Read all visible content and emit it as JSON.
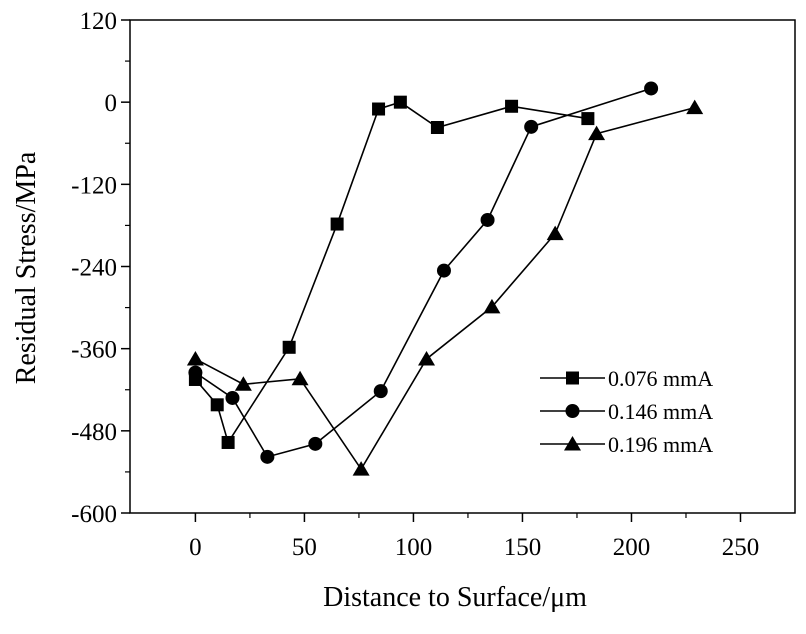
{
  "chart_data": {
    "type": "line",
    "xlabel": "Distance to Surface/μm",
    "ylabel": "Residual Stress/MPa",
    "xlim": [
      -30,
      275
    ],
    "ylim": [
      -600,
      120
    ],
    "xticks": [
      0,
      50,
      100,
      150,
      200,
      250
    ],
    "yticks": [
      -600,
      -480,
      -360,
      -240,
      -120,
      0,
      120
    ],
    "xtick_labels": [
      "0",
      "50",
      "100",
      "150",
      "200",
      "250"
    ],
    "ytick_labels": [
      "-600",
      "-480",
      "-360",
      "-240",
      "-120",
      "0",
      "120"
    ],
    "legend_placement": "lower-right",
    "grid": false,
    "series": [
      {
        "name": "0.076 mmA",
        "marker": "square",
        "x": [
          0,
          10,
          15,
          43,
          65,
          84,
          94,
          111,
          145,
          180
        ],
        "y": [
          -405,
          -442,
          -497,
          -358,
          -178,
          -10,
          0,
          -37,
          -6,
          -24
        ]
      },
      {
        "name": "0.146 mmA",
        "marker": "circle",
        "x": [
          0,
          17,
          33,
          55,
          85,
          114,
          134,
          154,
          209
        ],
        "y": [
          -395,
          -432,
          -518,
          -499,
          -422,
          -246,
          -172,
          -36,
          20
        ]
      },
      {
        "name": "0.196 mmA",
        "marker": "triangle",
        "x": [
          0,
          22,
          48,
          76,
          106,
          136,
          165,
          184,
          229
        ],
        "y": [
          -375,
          -412,
          -404,
          -536,
          -375,
          -299,
          -192,
          -46,
          -8
        ]
      }
    ]
  }
}
